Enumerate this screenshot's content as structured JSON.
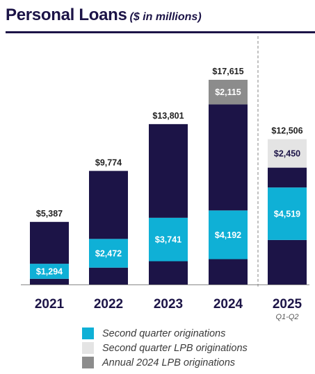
{
  "header": {
    "title": "Personal Loans",
    "subtitle": "($ in millions)"
  },
  "colors": {
    "base": "#1c1447",
    "second_quarter": "#0fb0d6",
    "second_quarter_lpb": "#e4e4e4",
    "annual_2024_lpb": "#8c8c8c",
    "divider": "#9a9a9a"
  },
  "chart_data": {
    "type": "bar",
    "stacked": true,
    "categories": [
      "2021",
      "2022",
      "2023",
      "2024",
      "2025"
    ],
    "category_sublabels": [
      "",
      "",
      "",
      "",
      "Q1-Q2"
    ],
    "totals": [
      5387,
      9774,
      13801,
      17615,
      12506
    ],
    "total_labels": [
      "$5,387",
      "$9,774",
      "$13,801",
      "$17,615",
      "$12,506"
    ],
    "segments": [
      {
        "key": "lower",
        "values": [
          490,
          1450,
          2000,
          2180,
          3830
        ],
        "labels": [
          "",
          "",
          "",
          "",
          ""
        ]
      },
      {
        "key": "second_quarter",
        "name": "Second quarter originations",
        "values": [
          1294,
          2472,
          3741,
          4192,
          4519
        ],
        "labels": [
          "$1,294",
          "$2,472",
          "$3,741",
          "$4,192",
          "$4,519"
        ]
      },
      {
        "key": "upper",
        "values": [
          3603,
          5852,
          8060,
          9128,
          1707
        ],
        "labels": [
          "",
          "",
          "",
          "",
          ""
        ]
      },
      {
        "key": "second_quarter_lpb",
        "name": "Second quarter LPB originations",
        "values": [
          0,
          0,
          0,
          0,
          2450
        ],
        "labels": [
          "",
          "",
          "",
          "",
          "$2,450"
        ]
      },
      {
        "key": "annual_2024_lpb",
        "name": "Annual 2024 LPB originations",
        "values": [
          0,
          0,
          0,
          2115,
          0
        ],
        "labels": [
          "",
          "",
          "",
          "$2,115",
          ""
        ]
      }
    ],
    "ylim": [
      0,
      17615
    ],
    "grid": false,
    "legend_position": "bottom"
  },
  "legend": [
    {
      "label": "Second quarter originations",
      "color_key": "second_quarter"
    },
    {
      "label": "Second quarter LPB originations",
      "color_key": "second_quarter_lpb"
    },
    {
      "label": "Annual 2024 LPB originations",
      "color_key": "annual_2024_lpb"
    }
  ]
}
